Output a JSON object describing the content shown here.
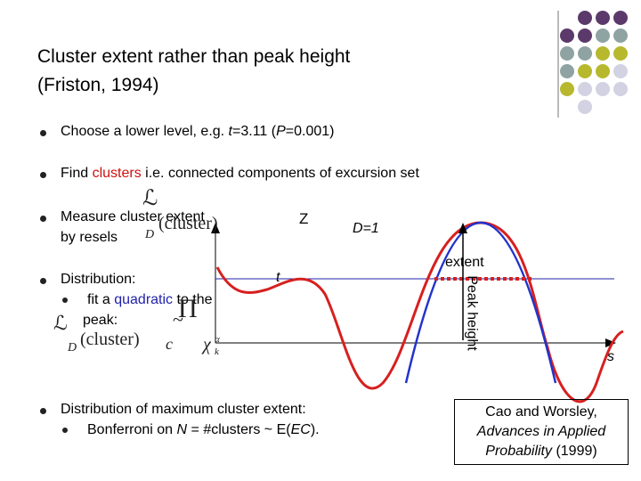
{
  "slide": {
    "title": [
      "Cluster extent rather than peak height",
      "(Friston, 1994)"
    ],
    "bullets": [
      {
        "parts": [
          "Choose a lower level, e.g. ",
          "t",
          "=3.11 (",
          "P",
          "=0.001)"
        ]
      },
      {
        "parts": [
          "Find ",
          "clusters",
          " i.e. connected components of excursion set"
        ]
      },
      {
        "parts": [
          "Measure cluster extent",
          "by resels"
        ],
        "math": [
          "ℒ",
          "D",
          "(cluster)"
        ]
      },
      {
        "parts": [
          "Distribution:",
          "fit a ",
          "quadratic",
          " to the",
          "peak:"
        ],
        "math": [
          "ℒ",
          "D",
          "(cluster)",
          "~",
          "Π",
          "c",
          "χ",
          "α",
          "k"
        ]
      },
      {
        "parts": [
          "Distribution of maximum cluster extent:",
          "Bonferroni on ",
          "N",
          " = #clusters ~ E(",
          "EC",
          ")."
        ]
      }
    ],
    "diagram": {
      "z_label": "Z",
      "d_label": "D=1",
      "extent_label": "extent",
      "t_label": "t",
      "peak_label": "Peak height",
      "s_label": "s"
    },
    "citation": [
      "Cao and Worsley,",
      "Advances in Applied",
      "Probability",
      " (1999)"
    ]
  }
}
